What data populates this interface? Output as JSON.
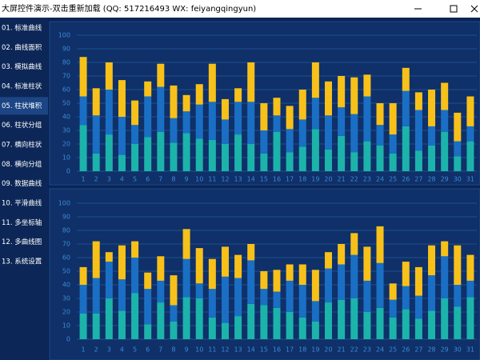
{
  "window": {
    "title": "大屏控件演示-双击重新加载 (QQ: 517216493  WX: feiyangqingyun)"
  },
  "menu": {
    "items": [
      "01. 标准曲线",
      "02. 曲线面积",
      "03. 模拟曲线",
      "04. 标准柱状",
      "05. 柱状堆积",
      "06. 柱状分组",
      "07. 横向柱状",
      "08. 横向分组",
      "09. 数据曲线",
      "10. 平滑曲线",
      "11. 多坐标轴",
      "12. 多曲线图",
      "13. 系统设置"
    ],
    "selected": 4
  },
  "chart_data": [
    {
      "type": "bar",
      "stacked": true,
      "grid": true,
      "categories": [
        "1",
        "2",
        "3",
        "4",
        "5",
        "6",
        "7",
        "8",
        "9",
        "10",
        "11",
        "12",
        "13",
        "14",
        "15",
        "16",
        "17",
        "18",
        "19",
        "20",
        "21",
        "22",
        "23",
        "24",
        "25",
        "26",
        "27",
        "28",
        "29",
        "30",
        "31"
      ],
      "ylim": [
        0,
        100
      ],
      "yticks": [
        0,
        10,
        20,
        30,
        40,
        50,
        60,
        70,
        80,
        90,
        100
      ],
      "series": [
        {
          "color": "#1cb3ab",
          "values": [
            34,
            13,
            27,
            12,
            20,
            25,
            29,
            21,
            28,
            24,
            23,
            20,
            27,
            20,
            13,
            29,
            14,
            18,
            31,
            16,
            26,
            14,
            22,
            19,
            13,
            33,
            15,
            19,
            29,
            11,
            22
          ]
        },
        {
          "color": "#1a6fc4",
          "values": [
            21,
            28,
            33,
            28,
            14,
            30,
            33,
            18,
            16,
            25,
            28,
            18,
            24,
            31,
            17,
            12,
            17,
            20,
            23,
            25,
            21,
            28,
            33,
            15,
            14,
            26,
            30,
            14,
            16,
            11,
            11
          ]
        },
        {
          "color": "#f7c11a",
          "values": [
            29,
            20,
            20,
            27,
            18,
            11,
            17,
            24,
            12,
            15,
            28,
            15,
            10,
            29,
            20,
            13,
            17,
            22,
            26,
            25,
            23,
            27,
            16,
            16,
            23,
            17,
            13,
            27,
            20,
            21,
            22
          ]
        }
      ]
    },
    {
      "type": "bar",
      "stacked": true,
      "grid": true,
      "categories": [
        "1",
        "2",
        "3",
        "4",
        "5",
        "6",
        "7",
        "8",
        "9",
        "10",
        "11",
        "12",
        "13",
        "14",
        "15",
        "16",
        "17",
        "18",
        "19",
        "20",
        "21",
        "22",
        "23",
        "24",
        "25",
        "26",
        "27",
        "28",
        "29",
        "30",
        "31"
      ],
      "ylim": [
        0,
        100
      ],
      "yticks": [
        0,
        10,
        20,
        30,
        40,
        50,
        60,
        70,
        80,
        90,
        100
      ],
      "series": [
        {
          "color": "#1cb3ab",
          "values": [
            19,
            19,
            30,
            21,
            34,
            11,
            27,
            13,
            31,
            30,
            16,
            12,
            17,
            26,
            25,
            23,
            20,
            16,
            13,
            27,
            29,
            30,
            20,
            23,
            16,
            22,
            15,
            21,
            30,
            24,
            31
          ]
        },
        {
          "color": "#1a6fc4",
          "values": [
            21,
            26,
            27,
            23,
            26,
            26,
            16,
            12,
            28,
            11,
            21,
            34,
            28,
            32,
            12,
            12,
            23,
            24,
            15,
            25,
            26,
            32,
            23,
            33,
            13,
            17,
            17,
            26,
            31,
            16,
            12
          ]
        },
        {
          "color": "#f7c11a",
          "values": [
            13,
            27,
            7,
            25,
            12,
            12,
            18,
            22,
            22,
            26,
            22,
            22,
            17,
            12,
            13,
            16,
            12,
            15,
            23,
            12,
            15,
            16,
            25,
            27,
            12,
            18,
            21,
            22,
            11,
            29,
            19
          ]
        }
      ]
    }
  ]
}
